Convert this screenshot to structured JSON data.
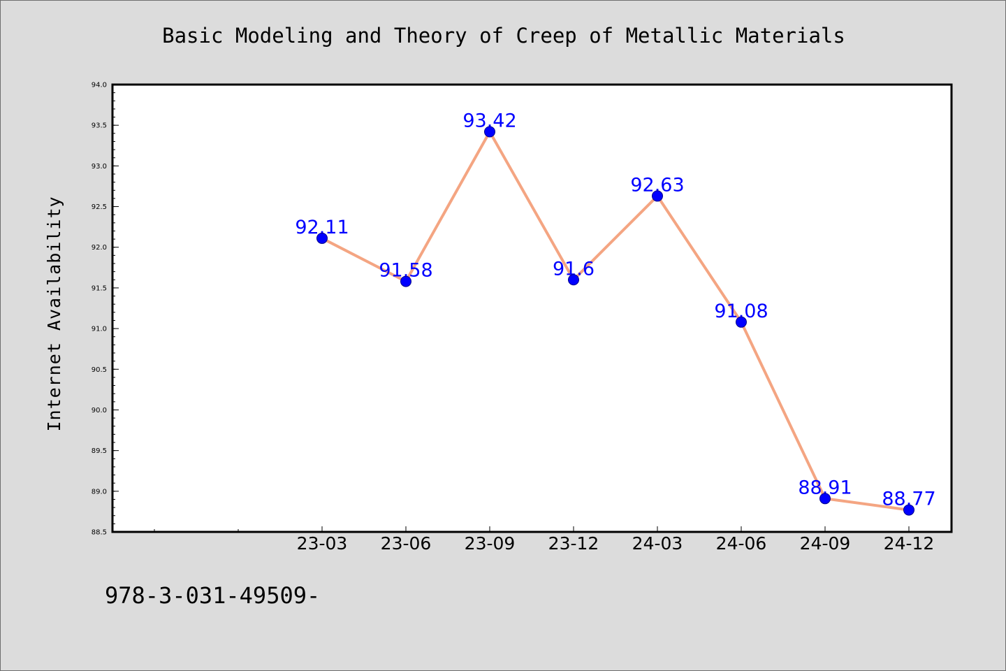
{
  "header": {
    "title": "Basic Modeling and Theory of Creep of Metallic Materials"
  },
  "footer": {
    "note": "978-3-031-49509-"
  },
  "chart_data": {
    "type": "line",
    "title": "Basic Modeling and Theory of Creep of Metallic Materials",
    "xlabel": "",
    "ylabel": "Internet Availability",
    "categories": [
      "23-03",
      "23-06",
      "23-09",
      "23-12",
      "24-03",
      "24-06",
      "24-09",
      "24-12"
    ],
    "series": [
      {
        "values": [
          92.11,
          91.58,
          93.42,
          91.6,
          92.63,
          91.08,
          88.91,
          88.77
        ],
        "labels": [
          "92.11",
          "91.58",
          "93.42",
          "91.6",
          "92.63",
          "91.08",
          "88.91",
          "88.77"
        ]
      }
    ],
    "ylim": [
      88.5,
      94.0
    ],
    "yticks": [
      "88.5",
      "89.0",
      "89.5",
      "90.0",
      "90.5",
      "91.0",
      "91.5",
      "92.0",
      "92.5",
      "93.0",
      "93.5",
      "94.0"
    ],
    "grid": false,
    "legend": "none",
    "colors": {
      "background": "#dcdcdc",
      "plot_area": "#ffffff",
      "line": "#f4a582",
      "marker": "#0000ff",
      "data_label": "#0000ff"
    }
  }
}
